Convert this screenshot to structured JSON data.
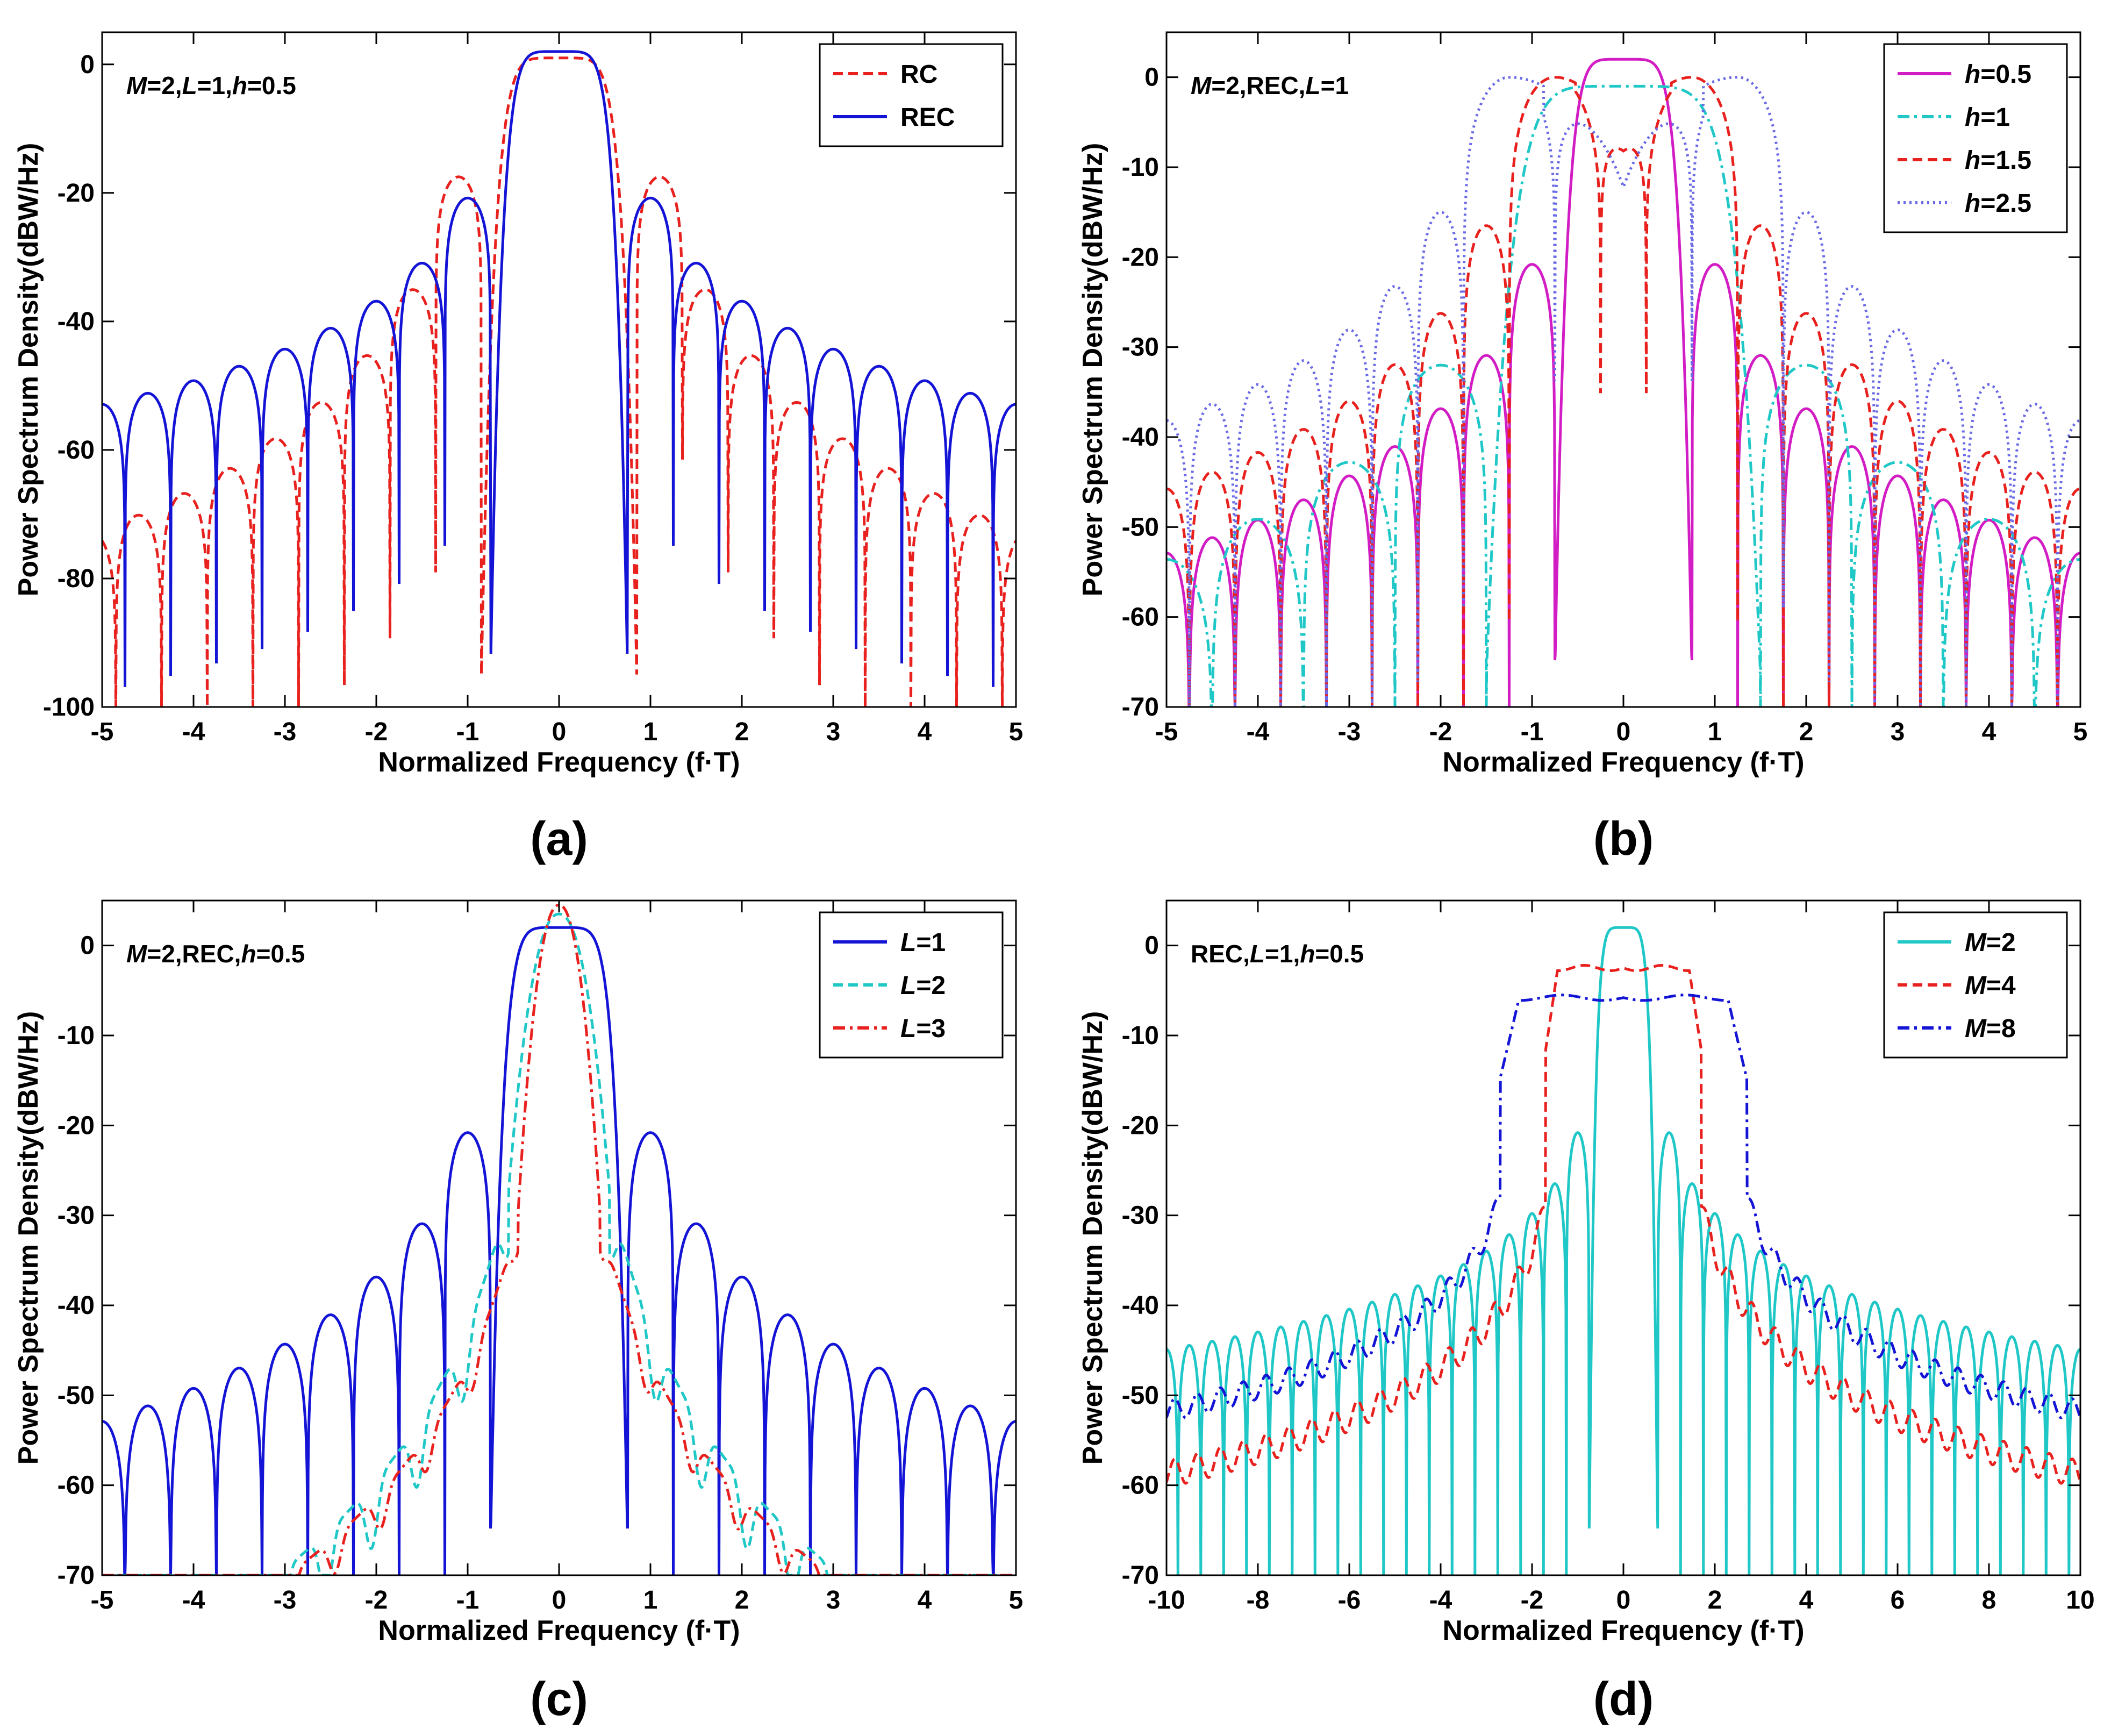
{
  "chart_data": [
    {
      "id": "a",
      "type": "line",
      "caption": "(a)",
      "annotation": "M=2,L=1,h=0.5",
      "annotation_parts": [
        [
          "M",
          true
        ],
        [
          "=2,",
          false
        ],
        [
          "L",
          true
        ],
        [
          "=1,",
          false
        ],
        [
          "h",
          true
        ],
        [
          "=0.5",
          false
        ]
      ],
      "xlabel": "Normalized Frequency (f·T)",
      "ylabel": "Power Spectrum Density(dBW/Hz)",
      "xlim": [
        -5,
        5
      ],
      "ylim": [
        -100,
        5
      ],
      "xticks": [
        -5,
        -4,
        -3,
        -2,
        -1,
        0,
        1,
        2,
        3,
        4,
        5
      ],
      "yticks": [
        0,
        -20,
        -40,
        -60,
        -80,
        -100
      ],
      "legend_position": "top-right",
      "series": [
        {
          "name": "RC",
          "legend_parts": [
            [
              "RC",
              false
            ]
          ],
          "color": "#e8211e",
          "dash": "dashed",
          "model": {
            "kind": "sinc",
            "peak": 1.0,
            "mainNull": 0.85,
            "sidePeak": -17.5,
            "spacing": 0.5,
            "decay": 13.0,
            "floor": -100,
            "offset": 0.0,
            "skipOdd": false
          }
        },
        {
          "name": "REC",
          "legend_parts": [
            [
              "REC",
              false
            ]
          ],
          "color": "#1414d6",
          "dash": "solid",
          "model": {
            "kind": "sinc",
            "peak": 2.0,
            "mainNull": 0.75,
            "sidePeak": -20.8,
            "spacing": 0.5,
            "decay": 7.5,
            "floor": -100,
            "offset": 0.0,
            "skipOdd": false
          }
        }
      ]
    },
    {
      "id": "b",
      "type": "line",
      "caption": "(b)",
      "annotation": "M=2,REC,L=1",
      "annotation_parts": [
        [
          "M",
          true
        ],
        [
          "=2,REC,",
          false
        ],
        [
          "L",
          true
        ],
        [
          "=1",
          false
        ]
      ],
      "xlabel": "Normalized Frequency (f·T)",
      "ylabel": "Power Spectrum Density(dBW/Hz)",
      "xlim": [
        -5,
        5
      ],
      "ylim": [
        -70,
        5
      ],
      "xticks": [
        -5,
        -4,
        -3,
        -2,
        -1,
        0,
        1,
        2,
        3,
        4,
        5
      ],
      "yticks": [
        0,
        -10,
        -20,
        -30,
        -40,
        -50,
        -60,
        -70
      ],
      "legend_position": "top-right",
      "series": [
        {
          "name": "h=0.5",
          "legend_parts": [
            [
              "h",
              true
            ],
            [
              "=0.5",
              false
            ]
          ],
          "color": "#d21cc4",
          "dash": "solid",
          "model": {
            "kind": "sinc",
            "peak": 2.0,
            "mainNull": 0.75,
            "sidePeak": -20.8,
            "spacing": 0.5,
            "decay": 7.5,
            "floor": -70,
            "offset": 0.0,
            "skipOdd": false
          }
        },
        {
          "name": "h=1",
          "legend_parts": [
            [
              "h",
              true
            ],
            [
              "=1",
              false
            ]
          ],
          "color": "#1fc7c7",
          "dash": "dashdot",
          "model": {
            "kind": "sinc",
            "peak": -1.0,
            "mainNull": 1.5,
            "sidePeak": -32.0,
            "spacing": 1.0,
            "decay": 8.0,
            "floor": -70,
            "offset": 0.0,
            "skipOdd": false
          }
        },
        {
          "name": "h=1.5",
          "legend_parts": [
            [
              "h",
              true
            ],
            [
              "=1.5",
              false
            ]
          ],
          "color": "#e8211e",
          "dash": "dashed",
          "model": {
            "kind": "offsetpeaks",
            "peak": 0.0,
            "centers": [
              -0.75,
              0.75
            ],
            "centerDip": -7.0,
            "sidePeak": -16.5,
            "spacing": 0.5,
            "decay": 6.5,
            "floor": -70
          }
        },
        {
          "name": "h=2.5",
          "legend_parts": [
            [
              "h",
              true
            ],
            [
              "=2.5",
              false
            ]
          ],
          "color": "#6a6ae6",
          "dash": "dotted",
          "model": {
            "kind": "offsetpeaks",
            "peak": 0.0,
            "centers": [
              -1.25,
              1.25
            ],
            "centerDip": -11.0,
            "sidePeak": -15.0,
            "spacing": 0.5,
            "decay": 5.5,
            "floor": -70
          }
        }
      ]
    },
    {
      "id": "c",
      "type": "line",
      "caption": "(c)",
      "annotation": "M=2,REC,h=0.5",
      "annotation_parts": [
        [
          "M",
          true
        ],
        [
          "=2,REC,",
          false
        ],
        [
          "h",
          true
        ],
        [
          "=0.5",
          false
        ]
      ],
      "xlabel": "Normalized Frequency (f·T)",
      "ylabel": "Power Spectrum Density(dBW/Hz)",
      "xlim": [
        -5,
        5
      ],
      "ylim": [
        -70,
        5
      ],
      "xticks": [
        -5,
        -4,
        -3,
        -2,
        -1,
        0,
        1,
        2,
        3,
        4,
        5
      ],
      "yticks": [
        0,
        -10,
        -20,
        -30,
        -40,
        -50,
        -60,
        -70
      ],
      "legend_position": "top-right",
      "series": [
        {
          "name": "L=1",
          "legend_parts": [
            [
              "L",
              true
            ],
            [
              "=1",
              false
            ]
          ],
          "color": "#1414d6",
          "dash": "solid",
          "model": {
            "kind": "sinc",
            "peak": 2.0,
            "mainNull": 0.75,
            "sidePeak": -20.8,
            "spacing": 0.5,
            "decay": 7.5,
            "floor": -70,
            "offset": 0.0,
            "skipOdd": false
          }
        },
        {
          "name": "L=2",
          "legend_parts": [
            [
              "L",
              true
            ],
            [
              "=2",
              false
            ]
          ],
          "color": "#1fc7c7",
          "dash": "dashed",
          "model": {
            "kind": "ripple",
            "peak": 3.5,
            "width": 0.55,
            "shoulder": -27.0,
            "slope": 7.5,
            "ripple": 7.0,
            "spacing": 0.5,
            "floor": -70
          }
        },
        {
          "name": "L=3",
          "legend_parts": [
            [
              "L",
              true
            ],
            [
              "=3",
              false
            ]
          ],
          "color": "#e8211e",
          "dash": "dashdot",
          "model": {
            "kind": "ripple",
            "peak": 4.5,
            "width": 0.45,
            "shoulder": -30.0,
            "slope": 7.0,
            "ripple": 4.0,
            "spacing": 0.5,
            "floor": -70
          }
        }
      ]
    },
    {
      "id": "d",
      "type": "line",
      "caption": "(d)",
      "annotation": "REC,L=1,h=0.5",
      "annotation_parts": [
        [
          "REC,",
          false
        ],
        [
          "L",
          true
        ],
        [
          "=1,",
          false
        ],
        [
          "h",
          true
        ],
        [
          "=0.5",
          false
        ]
      ],
      "xlabel": "Normalized Frequency (f·T)",
      "ylabel": "Power Spectrum Density(dBW/Hz)",
      "xlim": [
        -10,
        10
      ],
      "ylim": [
        -70,
        5
      ],
      "xticks": [
        -10,
        -8,
        -6,
        -4,
        -2,
        0,
        2,
        4,
        6,
        8,
        10
      ],
      "yticks": [
        0,
        -10,
        -20,
        -30,
        -40,
        -50,
        -60,
        -70
      ],
      "legend_position": "top-right",
      "series": [
        {
          "name": "M=2",
          "legend_parts": [
            [
              "M",
              true
            ],
            [
              "=2",
              false
            ]
          ],
          "color": "#1fc7c7",
          "dash": "solid",
          "model": {
            "kind": "sinc",
            "peak": 2.0,
            "mainNull": 0.75,
            "sidePeak": -20.8,
            "spacing": 0.5,
            "decay": 4.2,
            "floor": -70,
            "offset": 0.0,
            "skipOdd": false
          }
        },
        {
          "name": "M=4",
          "legend_parts": [
            [
              "M",
              true
            ],
            [
              "=4",
              false
            ]
          ],
          "color": "#e8211e",
          "dash": "dashed",
          "model": {
            "kind": "plateau",
            "top": -2.5,
            "edge": 1.7,
            "drop": -29.0,
            "slope": 3.6,
            "ripple": 1.5,
            "spacing": 0.5,
            "floor": -70
          }
        },
        {
          "name": "M=8",
          "legend_parts": [
            [
              "M",
              true
            ],
            [
              "=8",
              false
            ]
          ],
          "color": "#1414d6",
          "dash": "dashdot",
          "model": {
            "kind": "plateau",
            "top": -5.8,
            "edge": 2.7,
            "drop": -28.0,
            "slope": 3.0,
            "ripple": 1.2,
            "spacing": 0.5,
            "floor": -70
          }
        }
      ]
    }
  ]
}
